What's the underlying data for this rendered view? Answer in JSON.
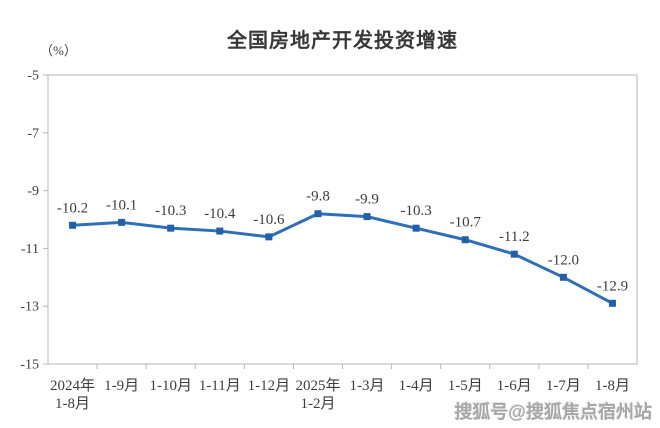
{
  "title": "全国房地产开发投资增速",
  "unit_label": "（%）",
  "watermark": "搜狐号@搜狐焦点宿州站",
  "colors": {
    "line": "#2E6FB8",
    "marker": "#2160AC",
    "text": "#3D3D3D",
    "axis": "#B5B5B5"
  },
  "chart_data": {
    "type": "line",
    "title": "全国房地产开发投资增速",
    "ylabel": "（%）",
    "categories": [
      [
        "2024年",
        "1-8月"
      ],
      [
        "1-9月"
      ],
      [
        "1-10月"
      ],
      [
        "1-11月"
      ],
      [
        "1-12月"
      ],
      [
        "2025年",
        "1-2月"
      ],
      [
        "1-3月"
      ],
      [
        "1-4月"
      ],
      [
        "1-5月"
      ],
      [
        "1-6月"
      ],
      [
        "1-7月"
      ],
      [
        "1-8月"
      ]
    ],
    "values": [
      -10.2,
      -10.1,
      -10.3,
      -10.4,
      -10.6,
      -9.8,
      -9.9,
      -10.3,
      -10.7,
      -11.2,
      -12.0,
      -12.9
    ],
    "point_labels": [
      "-10.2",
      "-10.1",
      "-10.3",
      "-10.4",
      "-10.6",
      "-9.8",
      "-9.9",
      "-10.3",
      "-10.7",
      "-11.2",
      "-12.0",
      "-12.9"
    ],
    "yticks": [
      -5,
      -7,
      -9,
      -11,
      -13,
      -15
    ],
    "ylim": [
      -15,
      -5
    ],
    "grid": false,
    "legend": false,
    "marker": "square"
  }
}
